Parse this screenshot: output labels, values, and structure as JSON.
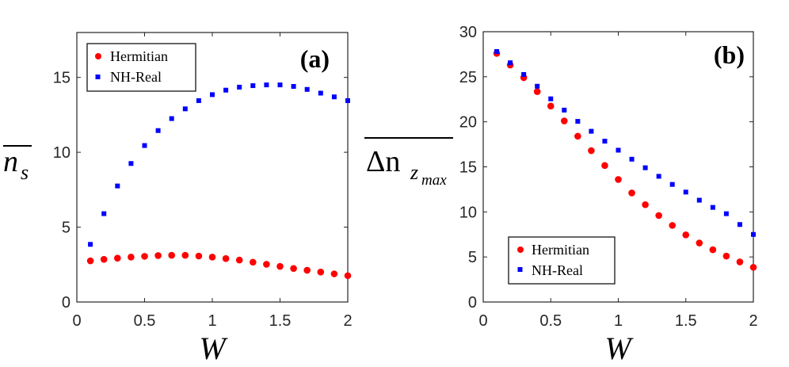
{
  "colors": {
    "hermitian": "#ff0000",
    "nhreal": "#0000ff",
    "axis": "#262626"
  },
  "chart_data": [
    {
      "type": "scatter",
      "panel_label_open": "(",
      "panel_label": "a",
      "panel_label_close": ")",
      "xlabel": "W",
      "ylabel": "n",
      "ylabel_sub": "s",
      "xlim": [
        0,
        2
      ],
      "ylim": [
        0,
        18
      ],
      "xticks": [
        0,
        0.5,
        1,
        1.5,
        2
      ],
      "xtick_labels": [
        "0",
        "0.5",
        "1",
        "1.5",
        "2"
      ],
      "yticks": [
        0,
        5,
        10,
        15
      ],
      "ytick_labels": [
        "0",
        "5",
        "10",
        "15"
      ],
      "legend_position": "top-left",
      "x": [
        0.1,
        0.2,
        0.3,
        0.4,
        0.5,
        0.6,
        0.7,
        0.8,
        0.9,
        1.0,
        1.1,
        1.2,
        1.3,
        1.4,
        1.5,
        1.6,
        1.7,
        1.8,
        1.9,
        2.0
      ],
      "series": [
        {
          "name": "Hermitian",
          "marker": "circle",
          "values": [
            2.75,
            2.85,
            2.93,
            3.0,
            3.05,
            3.1,
            3.12,
            3.12,
            3.07,
            3.0,
            2.9,
            2.8,
            2.66,
            2.52,
            2.38,
            2.24,
            2.12,
            2.0,
            1.88,
            1.76
          ]
        },
        {
          "name": "NH-Real",
          "marker": "square",
          "values": [
            3.85,
            5.9,
            7.75,
            9.25,
            10.45,
            11.45,
            12.25,
            12.9,
            13.45,
            13.85,
            14.15,
            14.35,
            14.45,
            14.5,
            14.5,
            14.4,
            14.2,
            13.95,
            13.7,
            13.45
          ]
        }
      ]
    },
    {
      "type": "scatter",
      "panel_label_open": "(",
      "panel_label": "b",
      "panel_label_close": ")",
      "xlabel": "W",
      "ylabel": "Δn",
      "ylabel_sub": "z",
      "ylabel_subsub": "max",
      "xlim": [
        0,
        2
      ],
      "ylim": [
        0,
        30
      ],
      "xticks": [
        0,
        0.5,
        1,
        1.5,
        2
      ],
      "xtick_labels": [
        "0",
        "0.5",
        "1",
        "1.5",
        "2"
      ],
      "yticks": [
        0,
        5,
        10,
        15,
        20,
        25,
        30
      ],
      "ytick_labels": [
        "0",
        "5",
        "10",
        "15",
        "20",
        "25",
        "30"
      ],
      "legend_position": "bottom-left",
      "x": [
        0.1,
        0.2,
        0.3,
        0.4,
        0.5,
        0.6,
        0.7,
        0.8,
        0.9,
        1.0,
        1.1,
        1.2,
        1.3,
        1.4,
        1.5,
        1.6,
        1.7,
        1.8,
        1.9,
        2.0
      ],
      "series": [
        {
          "name": "Hermitian",
          "marker": "circle",
          "values": [
            27.6,
            26.3,
            24.9,
            23.35,
            21.75,
            20.1,
            18.4,
            16.8,
            15.15,
            13.6,
            12.1,
            10.8,
            9.6,
            8.5,
            7.45,
            6.55,
            5.8,
            5.1,
            4.45,
            3.85
          ]
        },
        {
          "name": "NH-Real",
          "marker": "square",
          "values": [
            27.8,
            26.55,
            25.25,
            23.95,
            22.55,
            21.3,
            20.05,
            18.95,
            17.85,
            16.85,
            15.85,
            14.9,
            13.95,
            13.05,
            12.2,
            11.3,
            10.5,
            9.8,
            8.6,
            7.5
          ]
        }
      ]
    }
  ]
}
